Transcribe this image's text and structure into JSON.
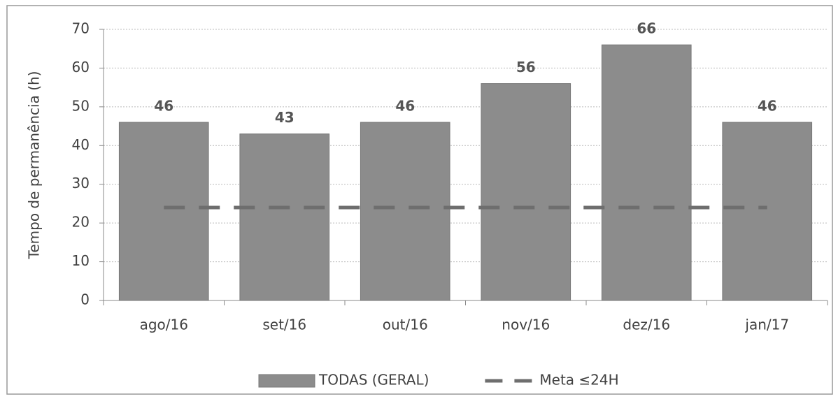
{
  "chart_data": {
    "type": "bar",
    "y_label": "Tempo de permanência (h)",
    "categories": [
      "ago/16",
      "set/16",
      "out/16",
      "nov/16",
      "dez/16",
      "jan/17"
    ],
    "series": [
      {
        "name": "TODAS (GERAL)",
        "type": "bar",
        "color": "#8c8c8c",
        "values": [
          46,
          43,
          46,
          56,
          66,
          46
        ]
      },
      {
        "name": "Meta ≤24H",
        "type": "line",
        "dashed": true,
        "color": "#6e6e6e",
        "values": [
          24,
          24,
          24,
          24,
          24,
          24
        ]
      }
    ],
    "ylim": [
      0,
      70
    ],
    "yticks": [
      0,
      10,
      20,
      30,
      40,
      50,
      60,
      70
    ],
    "grid": true
  }
}
